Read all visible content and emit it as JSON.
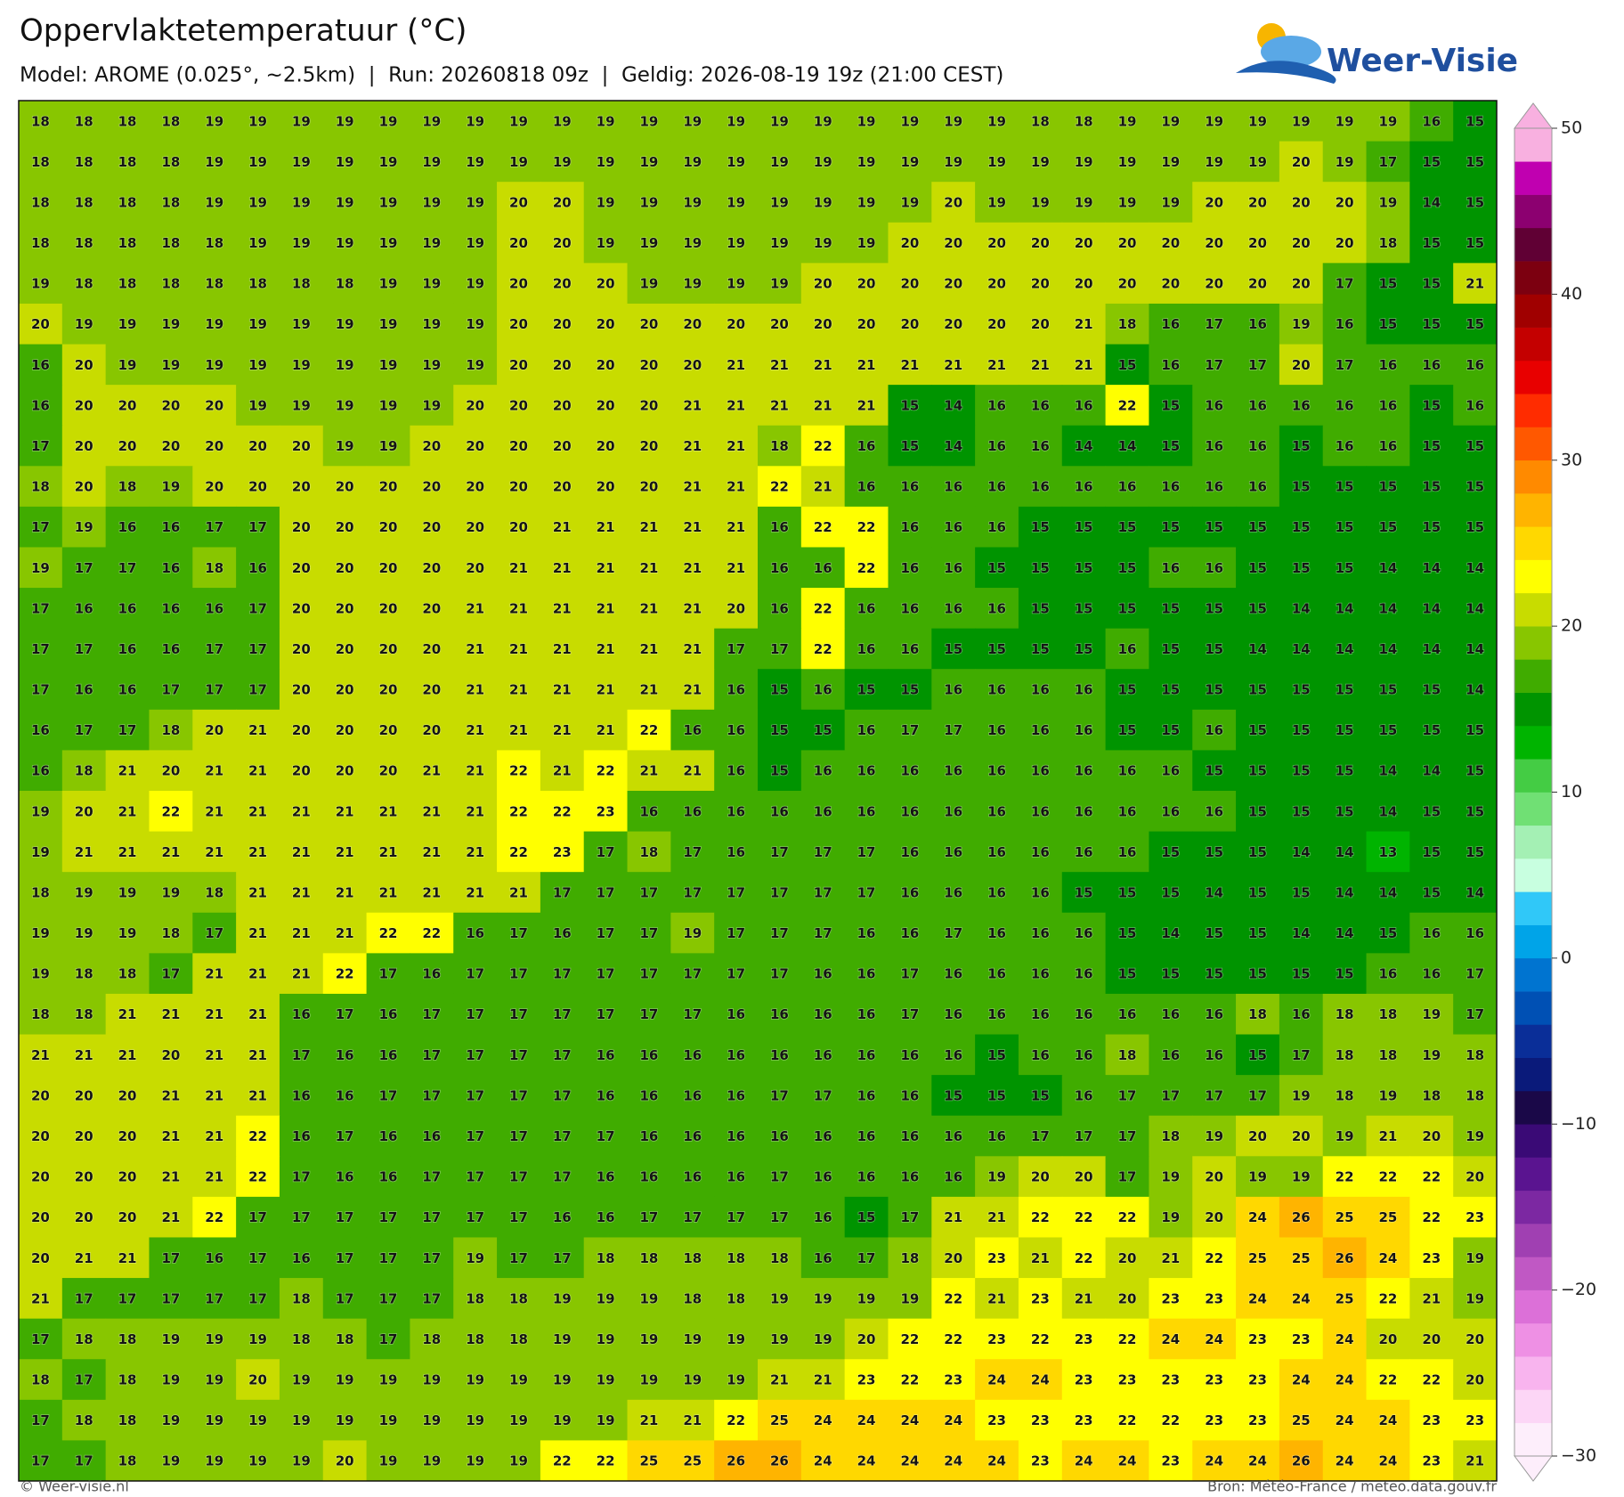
{
  "header": {
    "title": "Oppervlaktetemperatuur (°C)",
    "subtitle": "Model: AROME (0.025°, ~2.5km)  |  Run: 20260818 09z  |  Geldig: 2026-08-19 19z (21:00 CEST)",
    "logo": "Weer-Visie"
  },
  "map": {
    "values": [
      [
        18,
        18,
        18,
        18,
        19,
        19,
        19,
        19,
        19,
        19,
        19,
        19,
        19,
        19,
        19,
        19,
        19,
        19,
        19,
        19,
        19,
        19,
        19,
        18,
        18,
        19,
        19,
        19,
        19,
        19,
        19,
        19,
        16,
        15
      ],
      [
        18,
        18,
        18,
        18,
        19,
        19,
        19,
        19,
        19,
        19,
        19,
        19,
        19,
        19,
        19,
        19,
        19,
        19,
        19,
        19,
        19,
        19,
        19,
        19,
        19,
        19,
        19,
        19,
        19,
        20,
        19,
        17,
        15,
        15
      ],
      [
        18,
        18,
        18,
        18,
        19,
        19,
        19,
        19,
        19,
        19,
        19,
        20,
        20,
        19,
        19,
        19,
        19,
        19,
        19,
        19,
        19,
        20,
        19,
        19,
        19,
        19,
        19,
        20,
        20,
        20,
        20,
        19,
        14,
        15
      ],
      [
        18,
        18,
        18,
        18,
        18,
        19,
        19,
        19,
        19,
        19,
        19,
        20,
        20,
        19,
        19,
        19,
        19,
        19,
        19,
        19,
        20,
        20,
        20,
        20,
        20,
        20,
        20,
        20,
        20,
        20,
        20,
        18,
        15,
        15
      ],
      [
        19,
        18,
        18,
        18,
        18,
        18,
        18,
        18,
        19,
        19,
        19,
        20,
        20,
        20,
        19,
        19,
        19,
        19,
        20,
        20,
        20,
        20,
        20,
        20,
        20,
        20,
        20,
        20,
        20,
        20,
        17,
        15,
        15,
        21
      ],
      [
        20,
        19,
        19,
        19,
        19,
        19,
        19,
        19,
        19,
        19,
        19,
        20,
        20,
        20,
        20,
        20,
        20,
        20,
        20,
        20,
        20,
        20,
        20,
        20,
        21,
        18,
        16,
        17,
        16,
        19,
        16,
        15,
        15,
        15
      ],
      [
        16,
        20,
        19,
        19,
        19,
        19,
        19,
        19,
        19,
        19,
        19,
        20,
        20,
        20,
        20,
        20,
        21,
        21,
        21,
        21,
        21,
        21,
        21,
        21,
        21,
        15,
        16,
        17,
        17,
        20,
        17,
        16,
        16,
        16
      ],
      [
        16,
        20,
        20,
        20,
        20,
        19,
        19,
        19,
        19,
        19,
        20,
        20,
        20,
        20,
        20,
        21,
        21,
        21,
        21,
        21,
        15,
        14,
        16,
        16,
        16,
        22,
        15,
        16,
        16,
        16,
        16,
        16,
        15,
        16
      ],
      [
        17,
        20,
        20,
        20,
        20,
        20,
        20,
        19,
        19,
        20,
        20,
        20,
        20,
        20,
        20,
        21,
        21,
        18,
        22,
        16,
        15,
        14,
        16,
        16,
        14,
        14,
        15,
        16,
        16,
        15,
        16,
        16,
        15,
        15
      ],
      [
        18,
        20,
        18,
        19,
        20,
        20,
        20,
        20,
        20,
        20,
        20,
        20,
        20,
        20,
        20,
        21,
        21,
        22,
        21,
        16,
        16,
        16,
        16,
        16,
        16,
        16,
        16,
        16,
        16,
        15,
        15,
        15,
        15,
        15
      ],
      [
        17,
        19,
        16,
        16,
        17,
        17,
        20,
        20,
        20,
        20,
        20,
        20,
        21,
        21,
        21,
        21,
        21,
        16,
        22,
        22,
        16,
        16,
        16,
        15,
        15,
        15,
        15,
        15,
        15,
        15,
        15,
        15,
        15,
        15
      ],
      [
        19,
        17,
        17,
        16,
        18,
        16,
        20,
        20,
        20,
        20,
        20,
        21,
        21,
        21,
        21,
        21,
        21,
        16,
        16,
        22,
        16,
        16,
        15,
        15,
        15,
        15,
        16,
        16,
        15,
        15,
        15,
        14,
        14,
        14
      ],
      [
        17,
        16,
        16,
        16,
        16,
        17,
        20,
        20,
        20,
        20,
        21,
        21,
        21,
        21,
        21,
        21,
        20,
        16,
        22,
        16,
        16,
        16,
        16,
        15,
        15,
        15,
        15,
        15,
        15,
        14,
        14,
        14,
        14,
        14
      ],
      [
        17,
        17,
        16,
        16,
        17,
        17,
        20,
        20,
        20,
        20,
        21,
        21,
        21,
        21,
        21,
        21,
        17,
        17,
        22,
        16,
        16,
        15,
        15,
        15,
        15,
        16,
        15,
        15,
        14,
        14,
        14,
        14,
        14,
        14
      ],
      [
        17,
        16,
        16,
        17,
        17,
        17,
        20,
        20,
        20,
        20,
        21,
        21,
        21,
        21,
        21,
        21,
        16,
        15,
        16,
        15,
        15,
        16,
        16,
        16,
        16,
        15,
        15,
        15,
        15,
        15,
        15,
        15,
        15,
        14
      ],
      [
        16,
        17,
        17,
        18,
        20,
        21,
        20,
        20,
        20,
        20,
        21,
        21,
        21,
        21,
        22,
        16,
        16,
        15,
        15,
        16,
        17,
        17,
        16,
        16,
        16,
        15,
        15,
        16,
        15,
        15,
        15,
        15,
        15,
        15
      ],
      [
        16,
        18,
        21,
        20,
        21,
        21,
        20,
        20,
        20,
        21,
        21,
        22,
        21,
        22,
        21,
        21,
        16,
        15,
        16,
        16,
        16,
        16,
        16,
        16,
        16,
        16,
        16,
        15,
        15,
        15,
        15,
        14,
        14,
        15
      ],
      [
        19,
        20,
        21,
        22,
        21,
        21,
        21,
        21,
        21,
        21,
        21,
        22,
        22,
        23,
        16,
        16,
        16,
        16,
        16,
        16,
        16,
        16,
        16,
        16,
        16,
        16,
        16,
        16,
        15,
        15,
        15,
        14,
        15,
        15
      ],
      [
        19,
        21,
        21,
        21,
        21,
        21,
        21,
        21,
        21,
        21,
        21,
        22,
        23,
        17,
        18,
        17,
        16,
        17,
        17,
        17,
        16,
        16,
        16,
        16,
        16,
        16,
        15,
        15,
        15,
        14,
        14,
        13,
        15,
        15
      ],
      [
        18,
        19,
        19,
        19,
        18,
        21,
        21,
        21,
        21,
        21,
        21,
        21,
        17,
        17,
        17,
        17,
        17,
        17,
        17,
        17,
        16,
        16,
        16,
        16,
        15,
        15,
        15,
        14,
        15,
        15,
        14,
        14,
        15,
        14
      ],
      [
        19,
        19,
        19,
        18,
        17,
        21,
        21,
        21,
        22,
        22,
        16,
        17,
        16,
        17,
        17,
        19,
        17,
        17,
        17,
        16,
        16,
        17,
        16,
        16,
        16,
        15,
        14,
        15,
        15,
        14,
        14,
        15,
        16,
        16
      ],
      [
        19,
        18,
        18,
        17,
        21,
        21,
        21,
        22,
        17,
        16,
        17,
        17,
        17,
        17,
        17,
        17,
        17,
        17,
        16,
        16,
        17,
        16,
        16,
        16,
        16,
        15,
        15,
        15,
        15,
        15,
        15,
        16,
        16,
        17
      ],
      [
        18,
        18,
        21,
        21,
        21,
        21,
        16,
        17,
        16,
        17,
        17,
        17,
        17,
        17,
        17,
        17,
        16,
        16,
        16,
        16,
        17,
        16,
        16,
        16,
        16,
        16,
        16,
        16,
        18,
        16,
        18,
        18,
        19,
        17
      ],
      [
        21,
        21,
        21,
        20,
        21,
        21,
        17,
        16,
        16,
        17,
        17,
        17,
        17,
        16,
        16,
        16,
        16,
        16,
        16,
        16,
        16,
        16,
        15,
        16,
        16,
        18,
        16,
        16,
        15,
        17,
        18,
        18,
        19,
        18
      ],
      [
        20,
        20,
        20,
        21,
        21,
        21,
        16,
        16,
        17,
        17,
        17,
        17,
        17,
        16,
        16,
        16,
        16,
        17,
        17,
        16,
        16,
        15,
        15,
        15,
        16,
        17,
        17,
        17,
        17,
        19,
        18,
        19,
        18,
        18
      ],
      [
        20,
        20,
        20,
        21,
        21,
        22,
        16,
        17,
        16,
        16,
        17,
        17,
        17,
        17,
        16,
        16,
        16,
        16,
        16,
        16,
        16,
        16,
        16,
        17,
        17,
        17,
        18,
        19,
        20,
        20,
        19,
        21,
        20,
        19
      ],
      [
        20,
        20,
        20,
        21,
        21,
        22,
        17,
        16,
        16,
        17,
        17,
        17,
        17,
        16,
        16,
        16,
        16,
        17,
        16,
        16,
        16,
        16,
        19,
        20,
        20,
        17,
        19,
        20,
        19,
        19,
        22,
        22,
        22,
        20
      ],
      [
        20,
        20,
        20,
        21,
        22,
        17,
        17,
        17,
        17,
        17,
        17,
        17,
        16,
        16,
        17,
        17,
        17,
        17,
        16,
        15,
        17,
        21,
        21,
        22,
        22,
        22,
        19,
        20,
        24,
        26,
        25,
        25,
        22,
        23
      ],
      [
        20,
        21,
        21,
        17,
        16,
        17,
        16,
        17,
        17,
        17,
        19,
        17,
        17,
        18,
        18,
        18,
        18,
        18,
        16,
        17,
        18,
        20,
        23,
        21,
        22,
        20,
        21,
        22,
        25,
        25,
        26,
        24,
        23,
        19
      ],
      [
        21,
        17,
        17,
        17,
        17,
        17,
        18,
        17,
        17,
        17,
        18,
        18,
        19,
        19,
        19,
        18,
        18,
        19,
        19,
        19,
        19,
        22,
        21,
        23,
        21,
        20,
        23,
        23,
        24,
        24,
        25,
        22,
        21,
        19
      ],
      [
        17,
        18,
        18,
        19,
        19,
        19,
        18,
        18,
        17,
        18,
        18,
        18,
        19,
        19,
        19,
        19,
        19,
        19,
        19,
        20,
        22,
        22,
        23,
        22,
        23,
        22,
        24,
        24,
        23,
        23,
        24,
        20,
        20,
        20
      ],
      [
        18,
        17,
        18,
        19,
        19,
        20,
        19,
        19,
        19,
        19,
        19,
        19,
        19,
        19,
        19,
        19,
        19,
        21,
        21,
        23,
        22,
        23,
        24,
        24,
        23,
        23,
        23,
        23,
        23,
        24,
        24,
        22,
        22,
        20
      ],
      [
        17,
        18,
        18,
        19,
        19,
        19,
        19,
        19,
        19,
        19,
        19,
        19,
        19,
        19,
        21,
        21,
        22,
        25,
        24,
        24,
        24,
        24,
        23,
        23,
        23,
        22,
        22,
        23,
        23,
        25,
        24,
        24,
        23,
        23
      ],
      [
        17,
        17,
        18,
        19,
        19,
        19,
        19,
        20,
        19,
        19,
        19,
        19,
        22,
        22,
        25,
        25,
        26,
        26,
        24,
        24,
        24,
        24,
        24,
        23,
        24,
        24,
        23,
        24,
        24,
        26,
        24,
        24,
        23,
        21
      ]
    ]
  },
  "colorbar": {
    "lim": [
      -30,
      50
    ],
    "ticks": [
      50,
      40,
      30,
      20,
      10,
      0,
      {
        "value": -10,
        "label": "−10"
      },
      {
        "value": -20,
        "label": "−20"
      },
      {
        "value": -30,
        "label": "−30"
      }
    ],
    "colors": [
      "#fdeefb",
      "#fcd6f6",
      "#f8b4ee",
      "#ee90e4",
      "#dc70d8",
      "#c058c4",
      "#a040b2",
      "#7c28a2",
      "#5a1490",
      "#3a0a76",
      "#1a0848",
      "#0a1a7a",
      "#0a2e98",
      "#0050b4",
      "#0074d0",
      "#00a4e8",
      "#30c8f8",
      "#c8ffe0",
      "#a4f0b4",
      "#70e074",
      "#44cc44",
      "#00b400",
      "#009400",
      "#40ac00",
      "#88c600",
      "#c8dc00",
      "#ffff00",
      "#ffd800",
      "#ffb400",
      "#ff8a00",
      "#ff5800",
      "#ff2c00",
      "#e80000",
      "#c40000",
      "#a00000",
      "#7c0010",
      "#600034",
      "#8c0070",
      "#c000b0",
      "#f8b0e0"
    ]
  },
  "footer": {
    "left": "© Weer-visie.nl",
    "right": "Bron: Météo-France / meteo.data.gouv.fr"
  }
}
